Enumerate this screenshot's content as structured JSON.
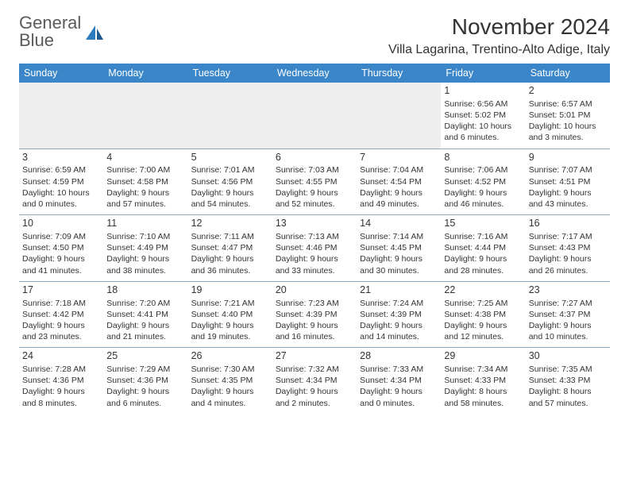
{
  "brand": {
    "word1": "General",
    "word2": "Blue"
  },
  "title": "November 2024",
  "location": "Villa Lagarina, Trentino-Alto Adige, Italy",
  "colors": {
    "header_bg": "#3a86c8",
    "header_text": "#ffffff",
    "cell_border": "#8aa8c2",
    "empty_bg": "#eeeeee",
    "text": "#333333",
    "logo_gray": "#5a5a5a",
    "logo_blue": "#2b7bbf"
  },
  "day_headers": [
    "Sunday",
    "Monday",
    "Tuesday",
    "Wednesday",
    "Thursday",
    "Friday",
    "Saturday"
  ],
  "weeks": [
    [
      null,
      null,
      null,
      null,
      null,
      {
        "n": "1",
        "sr": "Sunrise: 6:56 AM",
        "ss": "Sunset: 5:02 PM",
        "dl": "Daylight: 10 hours and 6 minutes."
      },
      {
        "n": "2",
        "sr": "Sunrise: 6:57 AM",
        "ss": "Sunset: 5:01 PM",
        "dl": "Daylight: 10 hours and 3 minutes."
      }
    ],
    [
      {
        "n": "3",
        "sr": "Sunrise: 6:59 AM",
        "ss": "Sunset: 4:59 PM",
        "dl": "Daylight: 10 hours and 0 minutes."
      },
      {
        "n": "4",
        "sr": "Sunrise: 7:00 AM",
        "ss": "Sunset: 4:58 PM",
        "dl": "Daylight: 9 hours and 57 minutes."
      },
      {
        "n": "5",
        "sr": "Sunrise: 7:01 AM",
        "ss": "Sunset: 4:56 PM",
        "dl": "Daylight: 9 hours and 54 minutes."
      },
      {
        "n": "6",
        "sr": "Sunrise: 7:03 AM",
        "ss": "Sunset: 4:55 PM",
        "dl": "Daylight: 9 hours and 52 minutes."
      },
      {
        "n": "7",
        "sr": "Sunrise: 7:04 AM",
        "ss": "Sunset: 4:54 PM",
        "dl": "Daylight: 9 hours and 49 minutes."
      },
      {
        "n": "8",
        "sr": "Sunrise: 7:06 AM",
        "ss": "Sunset: 4:52 PM",
        "dl": "Daylight: 9 hours and 46 minutes."
      },
      {
        "n": "9",
        "sr": "Sunrise: 7:07 AM",
        "ss": "Sunset: 4:51 PM",
        "dl": "Daylight: 9 hours and 43 minutes."
      }
    ],
    [
      {
        "n": "10",
        "sr": "Sunrise: 7:09 AM",
        "ss": "Sunset: 4:50 PM",
        "dl": "Daylight: 9 hours and 41 minutes."
      },
      {
        "n": "11",
        "sr": "Sunrise: 7:10 AM",
        "ss": "Sunset: 4:49 PM",
        "dl": "Daylight: 9 hours and 38 minutes."
      },
      {
        "n": "12",
        "sr": "Sunrise: 7:11 AM",
        "ss": "Sunset: 4:47 PM",
        "dl": "Daylight: 9 hours and 36 minutes."
      },
      {
        "n": "13",
        "sr": "Sunrise: 7:13 AM",
        "ss": "Sunset: 4:46 PM",
        "dl": "Daylight: 9 hours and 33 minutes."
      },
      {
        "n": "14",
        "sr": "Sunrise: 7:14 AM",
        "ss": "Sunset: 4:45 PM",
        "dl": "Daylight: 9 hours and 30 minutes."
      },
      {
        "n": "15",
        "sr": "Sunrise: 7:16 AM",
        "ss": "Sunset: 4:44 PM",
        "dl": "Daylight: 9 hours and 28 minutes."
      },
      {
        "n": "16",
        "sr": "Sunrise: 7:17 AM",
        "ss": "Sunset: 4:43 PM",
        "dl": "Daylight: 9 hours and 26 minutes."
      }
    ],
    [
      {
        "n": "17",
        "sr": "Sunrise: 7:18 AM",
        "ss": "Sunset: 4:42 PM",
        "dl": "Daylight: 9 hours and 23 minutes."
      },
      {
        "n": "18",
        "sr": "Sunrise: 7:20 AM",
        "ss": "Sunset: 4:41 PM",
        "dl": "Daylight: 9 hours and 21 minutes."
      },
      {
        "n": "19",
        "sr": "Sunrise: 7:21 AM",
        "ss": "Sunset: 4:40 PM",
        "dl": "Daylight: 9 hours and 19 minutes."
      },
      {
        "n": "20",
        "sr": "Sunrise: 7:23 AM",
        "ss": "Sunset: 4:39 PM",
        "dl": "Daylight: 9 hours and 16 minutes."
      },
      {
        "n": "21",
        "sr": "Sunrise: 7:24 AM",
        "ss": "Sunset: 4:39 PM",
        "dl": "Daylight: 9 hours and 14 minutes."
      },
      {
        "n": "22",
        "sr": "Sunrise: 7:25 AM",
        "ss": "Sunset: 4:38 PM",
        "dl": "Daylight: 9 hours and 12 minutes."
      },
      {
        "n": "23",
        "sr": "Sunrise: 7:27 AM",
        "ss": "Sunset: 4:37 PM",
        "dl": "Daylight: 9 hours and 10 minutes."
      }
    ],
    [
      {
        "n": "24",
        "sr": "Sunrise: 7:28 AM",
        "ss": "Sunset: 4:36 PM",
        "dl": "Daylight: 9 hours and 8 minutes."
      },
      {
        "n": "25",
        "sr": "Sunrise: 7:29 AM",
        "ss": "Sunset: 4:36 PM",
        "dl": "Daylight: 9 hours and 6 minutes."
      },
      {
        "n": "26",
        "sr": "Sunrise: 7:30 AM",
        "ss": "Sunset: 4:35 PM",
        "dl": "Daylight: 9 hours and 4 minutes."
      },
      {
        "n": "27",
        "sr": "Sunrise: 7:32 AM",
        "ss": "Sunset: 4:34 PM",
        "dl": "Daylight: 9 hours and 2 minutes."
      },
      {
        "n": "28",
        "sr": "Sunrise: 7:33 AM",
        "ss": "Sunset: 4:34 PM",
        "dl": "Daylight: 9 hours and 0 minutes."
      },
      {
        "n": "29",
        "sr": "Sunrise: 7:34 AM",
        "ss": "Sunset: 4:33 PM",
        "dl": "Daylight: 8 hours and 58 minutes."
      },
      {
        "n": "30",
        "sr": "Sunrise: 7:35 AM",
        "ss": "Sunset: 4:33 PM",
        "dl": "Daylight: 8 hours and 57 minutes."
      }
    ]
  ]
}
